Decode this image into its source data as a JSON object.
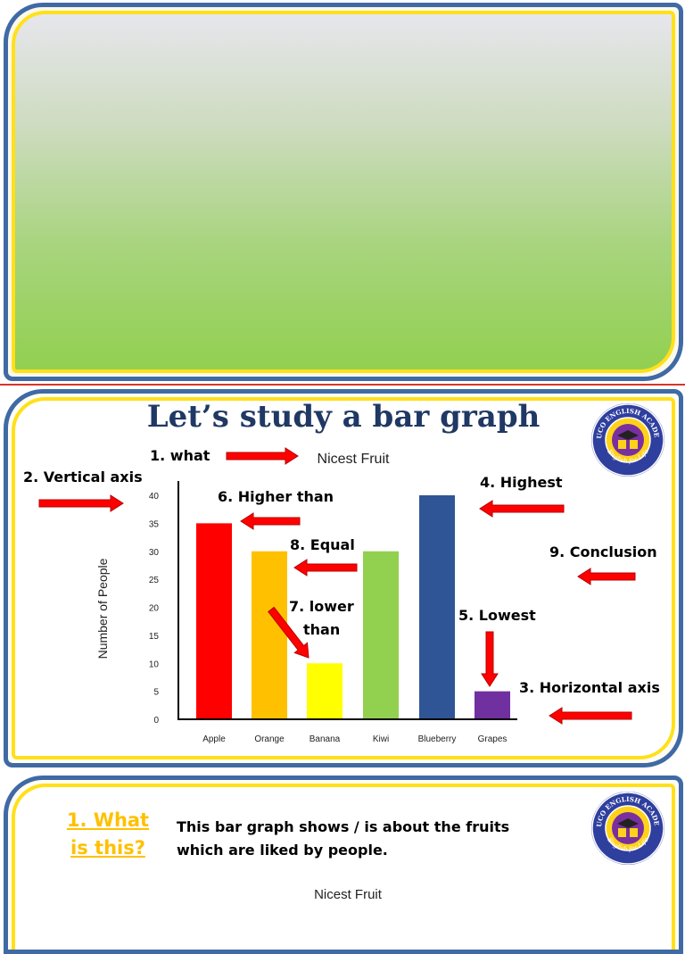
{
  "slide2": {
    "title": "Let’s study a bar graph",
    "labels": {
      "what": "1. what",
      "vertical_axis": "2. Vertical axis",
      "horizontal_axis": "3. Horizontal axis",
      "highest": "4. Highest",
      "lowest": "5. Lowest",
      "higher_than": "6. Higher than",
      "lower_than_1": "7. lower",
      "lower_than_2": "than",
      "equal": "8. Equal",
      "conclusion": "9. Conclusion"
    },
    "logo": {
      "top_text": "EDUCO ENGLISH ACADEMY",
      "bottom_text": "English for Life"
    }
  },
  "slide3": {
    "question_line1": "1. What",
    "question_line2": "is this?",
    "answer_line1": "This bar graph shows / is about the fruits",
    "answer_line2": "which are liked by people.",
    "chart_title": "Nicest Fruit"
  },
  "colors": {
    "frame_blue": "#3f6aa5",
    "frame_yellow": "#ffe01a",
    "title_navy": "#1f3864",
    "question_gold": "#ffc000",
    "arrow_red": "#ff0000"
  },
  "chart_data": {
    "type": "bar",
    "title": "Nicest Fruit",
    "xlabel": "",
    "ylabel": "Number of People",
    "categories": [
      "Apple",
      "Orange",
      "Banana",
      "Kiwi",
      "Blueberry",
      "Grapes"
    ],
    "values": [
      35,
      30,
      10,
      30,
      40,
      5
    ],
    "colors": [
      "#ff0000",
      "#ffc000",
      "#ffff00",
      "#92d050",
      "#2f5597",
      "#7030a0"
    ],
    "ylim": [
      0,
      40
    ],
    "yticks": [
      0,
      5,
      10,
      15,
      20,
      25,
      30,
      35,
      40
    ],
    "grid": false,
    "legend": "none"
  }
}
